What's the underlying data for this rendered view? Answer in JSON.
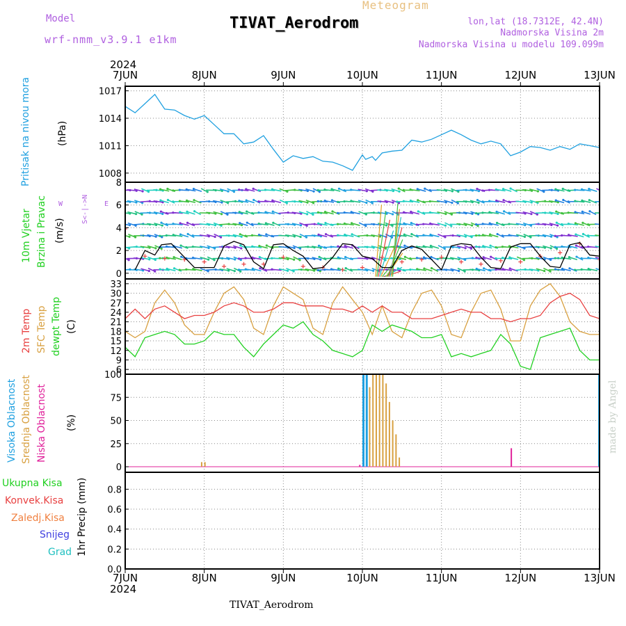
{
  "header": {
    "model_label": "Model",
    "model_name": "wrf-nmm_v3.9.1 e1km",
    "subtitle": "Meteogram",
    "title": "TIVAT_Aerodrom",
    "lonlat": "lon,lat (18.7312E, 42.4N)",
    "elevation": "Nadmorska Visina 2m",
    "model_elevation": "Nadmorska Visina u modelu 109.099m",
    "footer": "TIVAT_Aerodrom",
    "credit": "made by Angel"
  },
  "colors": {
    "pressure": "#1fa0e0",
    "temp2m": "#e84040",
    "sfc_temp": "#d8a040",
    "dewpt": "#20d020",
    "high_cloud": "#1fa0e0",
    "mid_cloud": "#d8a040",
    "low_cloud": "#e0209a",
    "gust": "#000000",
    "purple": "#b060e0"
  },
  "x_axis": {
    "year": "2024",
    "ticks": [
      "7JUN",
      "8JUN",
      "9JUN",
      "10JUN",
      "11JUN",
      "12JUN",
      "13JUN"
    ]
  },
  "panel_labels": {
    "pressure": {
      "name": "Pritisak na nivou mora",
      "unit": "(hPa)"
    },
    "wind": {
      "name1": "10m Vjetar",
      "name2": "Brzina i Pravac",
      "unit": "(m/s)",
      "compass_w": "W",
      "compass_e": "E",
      "compass_ns": "S<-|->N"
    },
    "temp": {
      "name1": "2m Temp",
      "name2": "SFC Temp",
      "name3": "dewpt Temp",
      "unit": "(C)"
    },
    "cloud": {
      "name1": "Visoka Oblacnost",
      "name2": "Srednja Oblacnost",
      "name3": "Niska Oblacnost",
      "unit": "(%)"
    },
    "precip": {
      "legend": [
        "Ukupna Kisa",
        "Konvek.Kisa",
        "Zaledj.Kisa",
        "Snijeg",
        "Grad"
      ],
      "unit": "1hr Precip (mm)"
    }
  },
  "chart_data": [
    {
      "type": "line",
      "title": "",
      "ylabel": "(hPa)",
      "yticks": [
        1008,
        1011,
        1014,
        1017
      ],
      "ylim": [
        1007,
        1017.5
      ],
      "x_units": "hours since 7JUN 00",
      "series": [
        {
          "name": "Pritisak na nivou mora",
          "x": [
            0,
            3,
            6,
            9,
            12,
            15,
            18,
            21,
            24,
            27,
            30,
            33,
            36,
            39,
            42,
            45,
            48,
            51,
            54,
            57,
            60,
            63,
            66,
            69,
            72,
            73,
            75,
            76,
            78,
            81,
            84,
            87,
            90,
            93,
            96,
            99,
            102,
            105,
            108,
            111,
            114,
            117,
            120,
            123,
            126,
            129,
            132,
            135,
            138,
            141,
            144
          ],
          "values": [
            1015.3,
            1014.6,
            1015.6,
            1016.6,
            1015.0,
            1014.9,
            1014.3,
            1013.9,
            1014.3,
            1013.3,
            1012.3,
            1012.3,
            1011.2,
            1011.4,
            1012.1,
            1010.6,
            1009.2,
            1009.9,
            1009.6,
            1009.8,
            1009.3,
            1009.2,
            1008.8,
            1008.3,
            1010.0,
            1009.5,
            1009.8,
            1009.4,
            1010.2,
            1010.4,
            1010.5,
            1011.6,
            1011.4,
            1011.7,
            1012.2,
            1012.7,
            1012.2,
            1011.6,
            1011.2,
            1011.5,
            1011.2,
            1009.9,
            1010.3,
            1010.9,
            1010.8,
            1010.5,
            1010.9,
            1010.6,
            1011.2,
            1011.0,
            1010.8
          ]
        }
      ]
    },
    {
      "type": "line",
      "title": "",
      "ylabel": "(m/s)",
      "yticks": [
        0,
        2,
        4,
        6,
        8
      ],
      "ylim": [
        -0.5,
        8
      ],
      "x_units": "hours since 7JUN 00",
      "barbs": "wind direction arrows for every hour at levels 0-7",
      "series": [
        {
          "name": "gust",
          "x": [
            3,
            6,
            9,
            11,
            14,
            18,
            21,
            24,
            27,
            30,
            33,
            36,
            39,
            42,
            45,
            48,
            51,
            54,
            57,
            60,
            63,
            66,
            69,
            72,
            75,
            78,
            81,
            84,
            87,
            90,
            93,
            96,
            99,
            102,
            105,
            108,
            111,
            114,
            117,
            120,
            123,
            126,
            129,
            132,
            135,
            138,
            141,
            144
          ],
          "values": [
            0.3,
            2.0,
            1.6,
            2.5,
            2.6,
            1.4,
            0.5,
            0.5,
            0.5,
            2.4,
            2.8,
            2.5,
            1.0,
            0.4,
            2.5,
            2.6,
            2.0,
            1.5,
            0.4,
            0.5,
            1.4,
            2.6,
            2.5,
            1.5,
            1.3,
            0.5,
            0.5,
            2.0,
            2.4,
            2.1,
            1.2,
            0.3,
            2.4,
            2.6,
            2.5,
            1.4,
            0.5,
            0.4,
            2.3,
            2.6,
            2.6,
            1.5,
            0.6,
            0.5,
            2.5,
            2.7,
            1.6,
            1.5
          ]
        },
        {
          "name": "wind speed",
          "x": [
            0,
            6,
            12,
            18,
            24,
            30,
            36,
            42,
            48,
            54,
            60,
            66,
            72,
            78,
            84,
            90,
            96,
            102,
            108,
            114,
            120,
            126,
            132,
            138,
            144
          ],
          "values": [
            3.9,
            1.5,
            1.3,
            1.2,
            1.0,
            0.6,
            0.8,
            0.8,
            1.4,
            0.6,
            0.5,
            0.3,
            0.5,
            1.4,
            1.0,
            1.2,
            1.4,
            1.0,
            0.8,
            1.1,
            1.0,
            1.5,
            1.8,
            2.6,
            1.2
          ]
        }
      ]
    },
    {
      "type": "line",
      "title": "",
      "ylabel": "(C)",
      "yticks": [
        6,
        9,
        12,
        15,
        18,
        21,
        24,
        27,
        30,
        33
      ],
      "ylim": [
        4.5,
        34.5
      ],
      "x_units": "hours since 7JUN 00",
      "series": [
        {
          "name": "2m Temp",
          "x": [
            0,
            3,
            6,
            9,
            12,
            15,
            18,
            21,
            24,
            27,
            30,
            33,
            36,
            39,
            42,
            45,
            48,
            51,
            54,
            57,
            60,
            63,
            66,
            69,
            72,
            75,
            78,
            81,
            84,
            87,
            90,
            93,
            96,
            99,
            102,
            105,
            108,
            111,
            114,
            117,
            120,
            123,
            126,
            129,
            132,
            135,
            138,
            141,
            144
          ],
          "values": [
            22,
            25,
            22,
            25,
            26,
            24,
            22,
            23,
            23,
            24,
            26,
            27,
            26,
            24,
            24,
            25,
            27,
            27,
            26,
            26,
            26,
            25,
            25,
            24,
            26,
            24,
            26,
            24,
            24,
            22,
            22,
            22,
            23,
            24,
            25,
            24,
            24,
            22,
            22,
            21,
            22,
            22,
            23,
            27,
            29,
            30,
            28,
            23,
            22
          ]
        },
        {
          "name": "SFC Temp",
          "x": [
            0,
            3,
            6,
            9,
            12,
            15,
            18,
            21,
            24,
            27,
            30,
            33,
            36,
            39,
            42,
            45,
            48,
            51,
            54,
            57,
            60,
            63,
            66,
            69,
            72,
            75,
            78,
            81,
            84,
            87,
            90,
            93,
            96,
            99,
            102,
            105,
            108,
            111,
            114,
            117,
            120,
            123,
            126,
            129,
            132,
            135,
            138,
            141,
            144
          ],
          "values": [
            18,
            16,
            18,
            27,
            31,
            27,
            20,
            17,
            17,
            24,
            30,
            32,
            28,
            19,
            17,
            26,
            32,
            30,
            28,
            19,
            17,
            27,
            32,
            28,
            24,
            17,
            26,
            18,
            16,
            24,
            30,
            31,
            26,
            17,
            16,
            24,
            30,
            31,
            25,
            15,
            15,
            26,
            31,
            33,
            29,
            21,
            18,
            17,
            17
          ]
        },
        {
          "name": "dewpt Temp",
          "x": [
            0,
            3,
            6,
            9,
            12,
            15,
            18,
            21,
            24,
            27,
            30,
            33,
            36,
            39,
            42,
            45,
            48,
            51,
            54,
            57,
            60,
            63,
            66,
            69,
            72,
            75,
            78,
            81,
            84,
            87,
            90,
            93,
            96,
            99,
            102,
            105,
            108,
            111,
            114,
            117,
            120,
            123,
            126,
            129,
            132,
            135,
            138,
            141,
            144
          ],
          "values": [
            13,
            10,
            16,
            17,
            18,
            17,
            14,
            14,
            15,
            18,
            17,
            17,
            13,
            10,
            14,
            17,
            20,
            19,
            21,
            17,
            15,
            12,
            11,
            10,
            12,
            20,
            18,
            20,
            19,
            18,
            16,
            16,
            17,
            10,
            11,
            10,
            11,
            12,
            17,
            14,
            7,
            6,
            16,
            17,
            18,
            19,
            12,
            9,
            9
          ]
        }
      ]
    },
    {
      "type": "bar",
      "title": "",
      "ylabel": "(%)",
      "yticks": [
        0,
        25,
        50,
        75,
        100
      ],
      "ylim": [
        -6,
        100
      ],
      "x_units": "hours since 7JUN 00",
      "series": [
        {
          "name": "Visoka Oblacnost",
          "x": [
            72,
            73,
            144
          ],
          "values": [
            100,
            100,
            100
          ]
        },
        {
          "name": "Srednja Oblacnost",
          "x": [
            23,
            24,
            74,
            75,
            76,
            77,
            78,
            79,
            80,
            81,
            82,
            83
          ],
          "values": [
            5,
            5,
            86,
            100,
            100,
            100,
            100,
            90,
            70,
            50,
            35,
            10
          ]
        },
        {
          "name": "Niska Oblacnost",
          "x": [
            71,
            117
          ],
          "values": [
            2,
            20
          ]
        }
      ]
    },
    {
      "type": "bar",
      "title": "",
      "ylabel": "1hr Precip (mm)",
      "yticks": [
        0.0,
        0.2,
        0.4,
        0.6,
        0.8
      ],
      "ylim": [
        0,
        0.97
      ],
      "series": []
    }
  ]
}
